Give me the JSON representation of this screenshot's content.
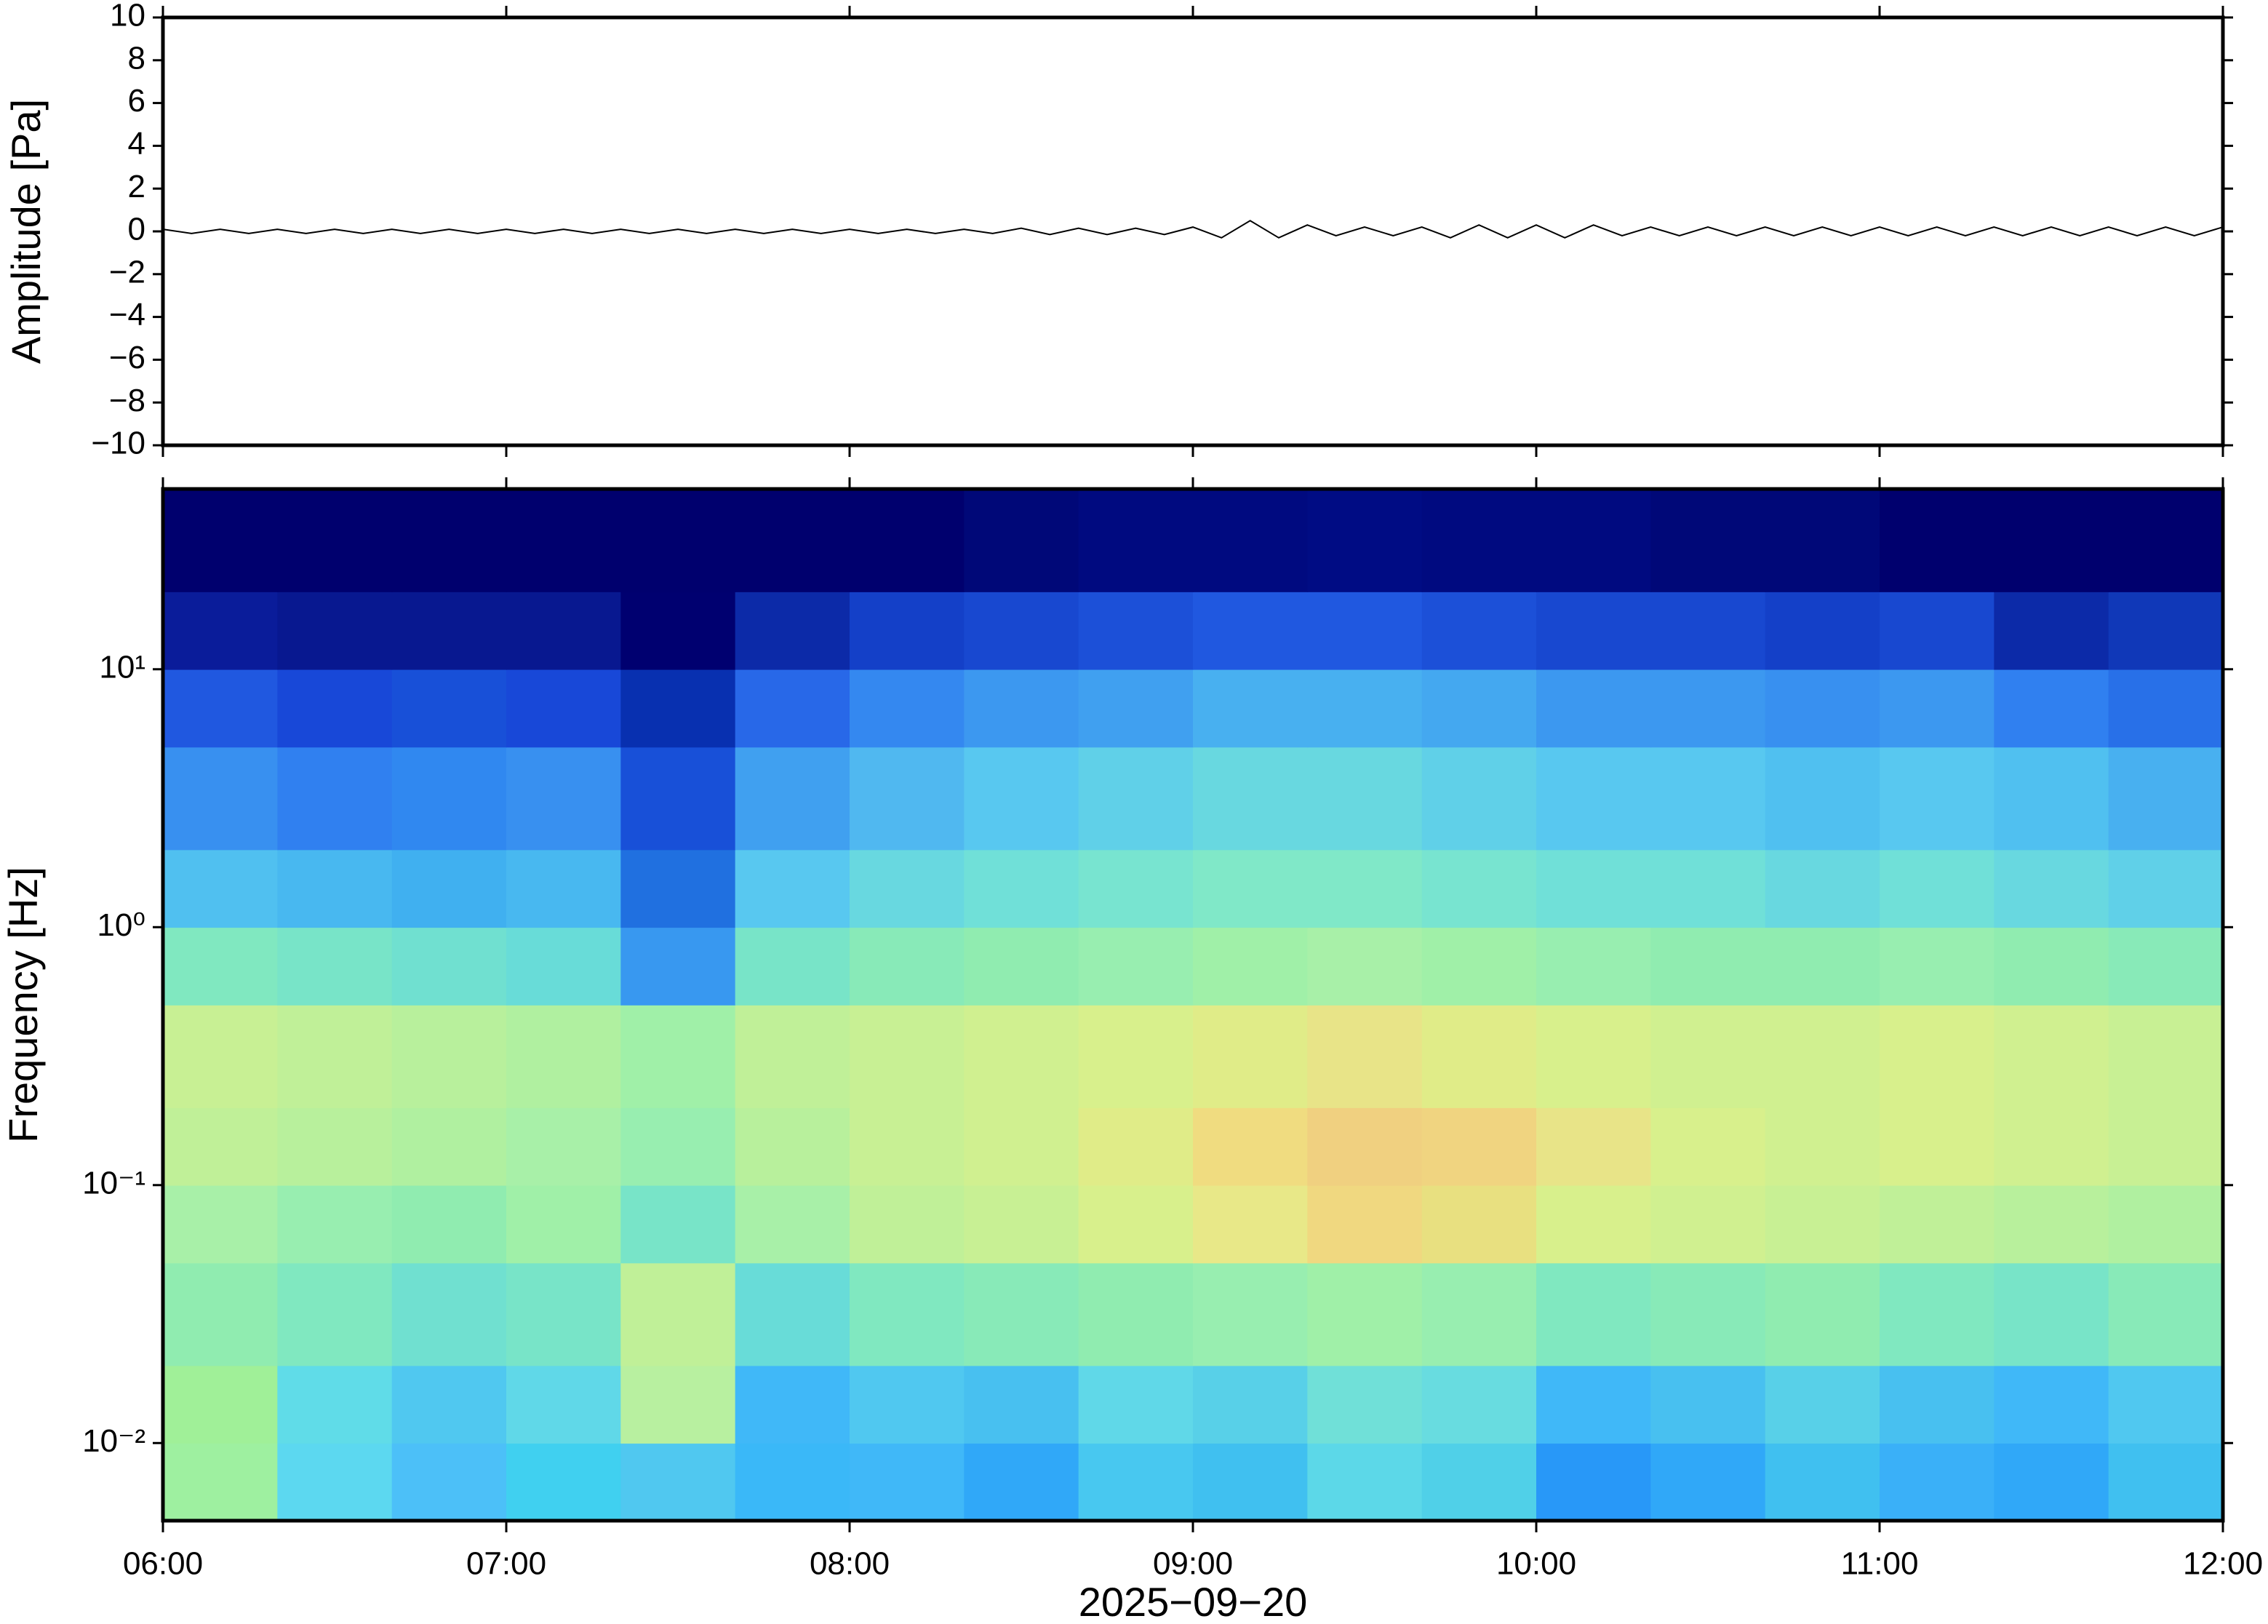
{
  "chart_data": [
    {
      "type": "line",
      "ylabel": "Amplitude [Pa]",
      "color": "#000000",
      "x": [
        360,
        365,
        370,
        375,
        380,
        385,
        390,
        395,
        400,
        405,
        410,
        415,
        420,
        425,
        430,
        435,
        440,
        445,
        450,
        455,
        460,
        465,
        470,
        475,
        480,
        485,
        490,
        495,
        500,
        505,
        510,
        515,
        520,
        525,
        530,
        535,
        540,
        545,
        550,
        555,
        560,
        565,
        570,
        575,
        580,
        585,
        590,
        595,
        600,
        605,
        610,
        615,
        620,
        625,
        630,
        635,
        640,
        645,
        650,
        655,
        660,
        665,
        670,
        675,
        680,
        685,
        690,
        695,
        700,
        705,
        710,
        715,
        720
      ],
      "values": [
        0.1,
        -0.1,
        0.1,
        -0.1,
        0.1,
        -0.1,
        0.1,
        -0.1,
        0.1,
        -0.1,
        0.1,
        -0.1,
        0.1,
        -0.1,
        0.1,
        -0.1,
        0.1,
        -0.1,
        0.1,
        -0.1,
        0.1,
        -0.1,
        0.1,
        -0.1,
        0.1,
        -0.1,
        0.1,
        -0.1,
        0.1,
        -0.1,
        0.15,
        -0.15,
        0.15,
        -0.15,
        0.15,
        -0.15,
        0.2,
        -0.3,
        0.5,
        -0.3,
        0.3,
        -0.2,
        0.2,
        -0.2,
        0.2,
        -0.3,
        0.3,
        -0.3,
        0.3,
        -0.3,
        0.3,
        -0.2,
        0.2,
        -0.2,
        0.2,
        -0.2,
        0.2,
        -0.2,
        0.2,
        -0.2,
        0.2,
        -0.2,
        0.2,
        -0.2,
        0.2,
        -0.2,
        0.2,
        -0.2,
        0.2,
        -0.2,
        0.2,
        -0.2,
        0.2
      ],
      "xlim": [
        360,
        720
      ],
      "xticks": [
        360,
        420,
        480,
        540,
        600,
        660,
        720
      ],
      "ylim": [
        -10,
        10
      ],
      "yticks": [
        {
          "value": -10,
          "label": "−10"
        },
        {
          "value": -8,
          "label": "−8"
        },
        {
          "value": -6,
          "label": "−6"
        },
        {
          "value": -4,
          "label": "−4"
        },
        {
          "value": -2,
          "label": "−2"
        },
        0,
        2,
        4,
        6,
        8,
        10
      ]
    },
    {
      "type": "heatmap",
      "ylabel": "Frequency [Hz]",
      "xlabel": "2025−09−20",
      "log_y": true,
      "x_edges": [
        360,
        380,
        400,
        420,
        440,
        460,
        480,
        500,
        520,
        540,
        560,
        580,
        600,
        620,
        640,
        660,
        680,
        700,
        720
      ],
      "y_edges": [
        0.005,
        0.01,
        0.02,
        0.05,
        0.1,
        0.2,
        0.5,
        1,
        2,
        5,
        10,
        20,
        50
      ],
      "colors": [
        [
          "#9ef0a0",
          "#5cd8f0",
          "#4cc0f8",
          "#40d0f0",
          "#50c8f0",
          "#3ab8f8",
          "#40b8f8",
          "#30a8f8",
          "#48c8f0",
          "#40c0f0",
          "#5cd8e8",
          "#50d0e8",
          "#2898f8",
          "#30a8f8",
          "#40c0f0",
          "#3ab0f8",
          "#30a8f8",
          "#40c0f0"
        ],
        [
          "#a0f098",
          "#60dce8",
          "#50c8f0",
          "#60d8e8",
          "#b8f0a0",
          "#40b8f8",
          "#50c8f0",
          "#48c0f0",
          "#60d8e8",
          "#58d0e8",
          "#70e0d8",
          "#68dce0",
          "#40b8f8",
          "#48c0f0",
          "#58d0e8",
          "#48c0f0",
          "#40b8f8",
          "#50c8f0"
        ],
        [
          "#90ecb0",
          "#80e8c0",
          "#70e0d0",
          "#78e4c8",
          "#c0f098",
          "#68dcd8",
          "#80e8c0",
          "#88eab8",
          "#90ecb0",
          "#98eeb0",
          "#a0f0a8",
          "#98eeb0",
          "#80e8c0",
          "#88eab8",
          "#90ecb0",
          "#80e8c0",
          "#78e4c8",
          "#88eab8"
        ],
        [
          "#a8f0a8",
          "#98eeb0",
          "#90ecb0",
          "#a0f0a8",
          "#78e4c8",
          "#a8f0a8",
          "#c0f098",
          "#c8f094",
          "#d8f08c",
          "#e8e888",
          "#f0d880",
          "#e8e080",
          "#d8f08c",
          "#d0f090",
          "#c8f094",
          "#c0f098",
          "#b8f09c",
          "#b0f0a0"
        ],
        [
          "#c0f098",
          "#b8f09c",
          "#b0f0a0",
          "#a8f0a8",
          "#98eeb0",
          "#b8f09c",
          "#c8f094",
          "#d0f090",
          "#e0ec88",
          "#f0dc80",
          "#f0d080",
          "#f0d480",
          "#e8e488",
          "#d8f08c",
          "#d0f090",
          "#d8f08c",
          "#d0f090",
          "#c8f094"
        ],
        [
          "#c8f094",
          "#c0f098",
          "#b8f09c",
          "#b0f0a0",
          "#a0f0a8",
          "#c0f098",
          "#c8f094",
          "#d0f090",
          "#d8f08c",
          "#e0ec88",
          "#e8e488",
          "#e0ec88",
          "#d8f08c",
          "#d0f090",
          "#d0f090",
          "#d8f08c",
          "#d0f090",
          "#c8f094"
        ],
        [
          "#80e8c0",
          "#78e4c8",
          "#70e0d0",
          "#68dcd8",
          "#3898f0",
          "#78e4c8",
          "#88eab8",
          "#90ecb0",
          "#98eeb0",
          "#a0f0a8",
          "#a8f0a8",
          "#a0f0a8",
          "#98eeb0",
          "#90ecb0",
          "#90ecb0",
          "#98eeb0",
          "#90ecb0",
          "#88eab8"
        ],
        [
          "#50c0f0",
          "#48b8f0",
          "#40b0f0",
          "#48b8f0",
          "#2070e0",
          "#58c8f0",
          "#68d8e0",
          "#70e0d8",
          "#78e4d0",
          "#80e8c8",
          "#80e8c8",
          "#78e4d0",
          "#70e0d8",
          "#70e0d8",
          "#68d8e0",
          "#70e0d8",
          "#68d8e0",
          "#60d0e8"
        ],
        [
          "#3890f0",
          "#3080f0",
          "#3088f0",
          "#3890f0",
          "#1850d8",
          "#40a0f0",
          "#50b8f0",
          "#58c8f0",
          "#60d0e8",
          "#68d8e0",
          "#68d8e0",
          "#60d0e8",
          "#58c8f0",
          "#58c8f0",
          "#50c0f0",
          "#58c8f0",
          "#50c0f0",
          "#48b0f0"
        ],
        [
          "#2058e0",
          "#1848d8",
          "#1850d8",
          "#1848d8",
          "#0830b0",
          "#2868e8",
          "#3488f0",
          "#3c98f0",
          "#40a0f0",
          "#48b0f0",
          "#48b0f0",
          "#44a8f0",
          "#3c98f0",
          "#3c98f0",
          "#3890f0",
          "#3c98f0",
          "#3080f0",
          "#2870e8"
        ],
        [
          "#0a1c9a",
          "#081890",
          "#081890",
          "#081890",
          "#000070",
          "#0c2aa8",
          "#1440c8",
          "#1848d0",
          "#1c50d8",
          "#2058e0",
          "#2058e0",
          "#1c50d8",
          "#1848d0",
          "#1848d0",
          "#1440c8",
          "#1848d0",
          "#0c2aa8",
          "#1038b8"
        ],
        [
          "#00006e",
          "#00006e",
          "#00006e",
          "#00006e",
          "#00006e",
          "#00006e",
          "#00006e",
          "#000878",
          "#000a80",
          "#000a80",
          "#000c84",
          "#000a80",
          "#000a80",
          "#000878",
          "#000878",
          "#00006e",
          "#00006e",
          "#00006e"
        ]
      ],
      "xlim": [
        360,
        720
      ],
      "xticks": [
        {
          "value": 360,
          "label": "06:00"
        },
        {
          "value": 420,
          "label": "07:00"
        },
        {
          "value": 480,
          "label": "08:00"
        },
        {
          "value": 540,
          "label": "09:00"
        },
        {
          "value": 600,
          "label": "10:00"
        },
        {
          "value": 660,
          "label": "11:00"
        },
        {
          "value": 720,
          "label": "12:00"
        }
      ],
      "ylim": [
        0.005,
        50
      ],
      "yticks": [
        {
          "value": 0.01,
          "label": "10⁻²"
        },
        {
          "value": 0.1,
          "label": "10⁻¹"
        },
        {
          "value": 1,
          "label": "10⁰"
        },
        {
          "value": 10,
          "label": "10¹"
        }
      ]
    }
  ]
}
